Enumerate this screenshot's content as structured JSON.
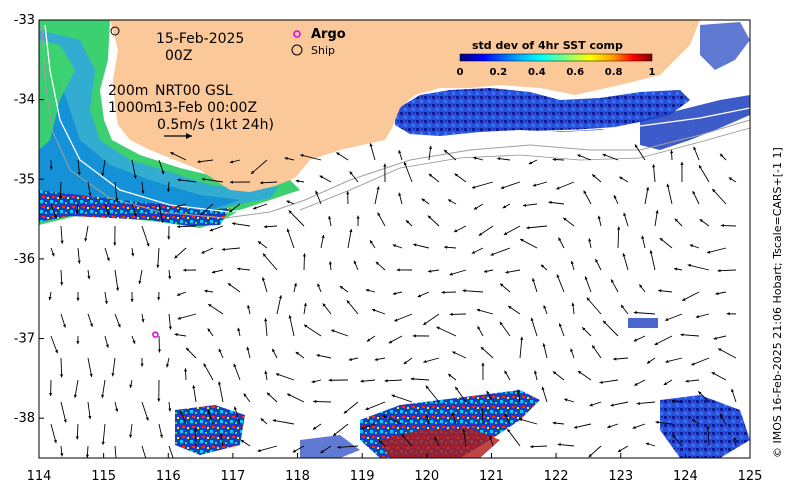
{
  "map": {
    "date_line": "15-Feb-2025",
    "time_line": "00Z",
    "depth_200": "200m",
    "depth_1000": "1000m",
    "gsl_line": "NRT00 GSL",
    "gsl_time": "13-Feb 00:00Z",
    "vector_scale": "0.5m/s (1kt 24h)",
    "credit": "© IMOS 16-Feb-2025 21:06 Hobart; Tscale=CARS+[-1 1]",
    "land_color": "#fbc89a",
    "background_color": "#ffffff"
  },
  "legend": {
    "argo_label": "Argo",
    "ship_label": "Ship",
    "argo_color": "#e000e0"
  },
  "colorbar": {
    "title": "std dev of 4hr SST comp",
    "ticks": [
      "0",
      "0.2",
      "0.4",
      "0.6",
      "0.8",
      "1"
    ],
    "range": [
      0,
      1
    ],
    "colors": [
      "#00007f",
      "#0000ff",
      "#007fff",
      "#00ffff",
      "#7fff7f",
      "#ffff00",
      "#ff7f00",
      "#ff0000",
      "#7f0000"
    ]
  },
  "axes": {
    "x_ticks": [
      "114",
      "115",
      "116",
      "117",
      "118",
      "119",
      "120",
      "121",
      "122",
      "123",
      "124",
      "125"
    ],
    "y_ticks": [
      "-33",
      "-34",
      "-35",
      "-36",
      "-37",
      "-38"
    ],
    "x_range": [
      114,
      125
    ],
    "y_range": [
      -38.5,
      -33
    ]
  },
  "argo_float": {
    "lon": 115.8,
    "lat": -36.95
  }
}
